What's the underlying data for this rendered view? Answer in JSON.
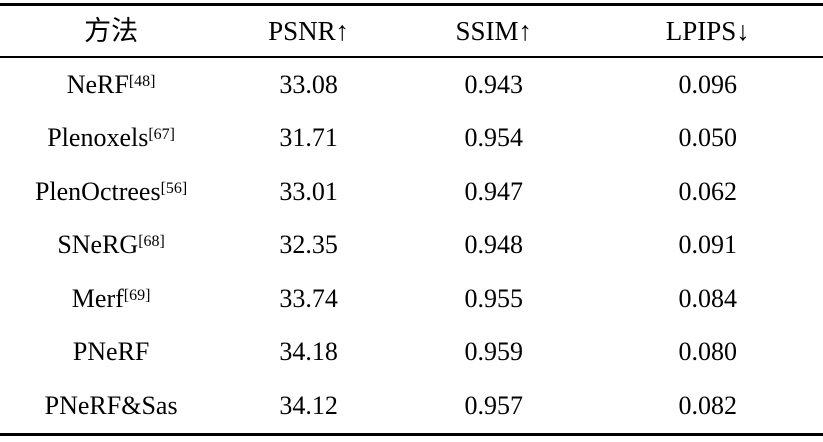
{
  "table": {
    "columns": [
      {
        "label": "方法"
      },
      {
        "label": "PSNR↑"
      },
      {
        "label": "SSIM↑"
      },
      {
        "label": "LPIPS↓"
      }
    ],
    "rows": [
      {
        "method": "NeRF",
        "ref": "[48]",
        "psnr": "33.08",
        "ssim": "0.943",
        "lpips": "0.096"
      },
      {
        "method": "Plenoxels",
        "ref": "[67]",
        "psnr": "31.71",
        "ssim": "0.954",
        "lpips": "0.050"
      },
      {
        "method": "PlenOctrees",
        "ref": "[56]",
        "psnr": "33.01",
        "ssim": "0.947",
        "lpips": "0.062"
      },
      {
        "method": "SNeRG",
        "ref": "[68]",
        "psnr": "32.35",
        "ssim": "0.948",
        "lpips": "0.091"
      },
      {
        "method": "Merf",
        "ref": "[69]",
        "psnr": "33.74",
        "ssim": "0.955",
        "lpips": "0.084"
      },
      {
        "method": "PNeRF",
        "ref": "",
        "psnr": "34.18",
        "ssim": "0.959",
        "lpips": "0.080"
      },
      {
        "method": "PNeRF&Sas",
        "ref": "",
        "psnr": "34.12",
        "ssim": "0.957",
        "lpips": "0.082"
      }
    ]
  }
}
